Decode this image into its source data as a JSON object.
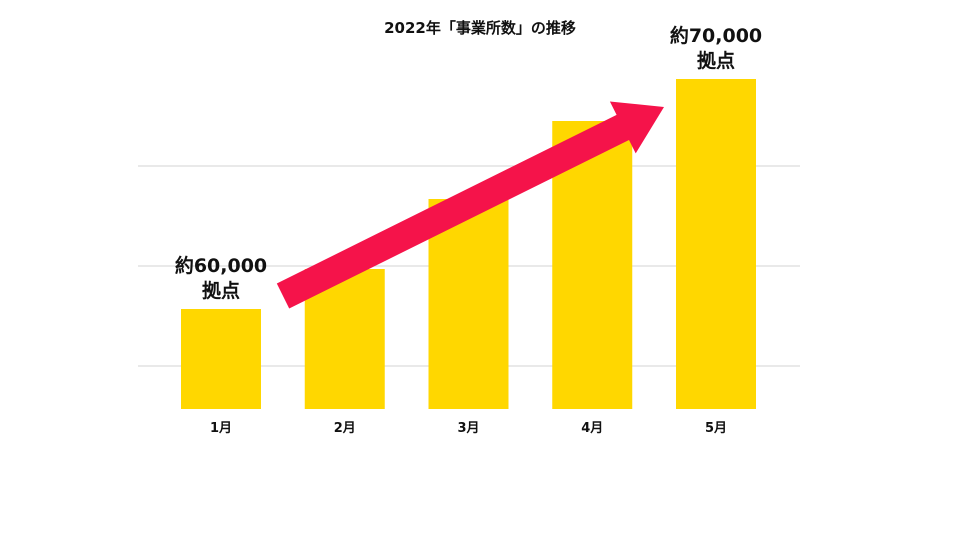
{
  "chart_data": {
    "type": "bar",
    "title": "2022年「事業所数」の推移",
    "categories": [
      "1月",
      "2月",
      "3月",
      "4月",
      "5月"
    ],
    "values": [
      60000,
      62000,
      65500,
      69400,
      71500
    ],
    "ylim": [
      55000,
      75000
    ],
    "grid": true,
    "gridlines_shown": 3,
    "xlabel": "",
    "ylabel": "",
    "annotations": [
      {
        "category": "1月",
        "line1": "約60,000",
        "line2": "拠点"
      },
      {
        "category": "5月",
        "line1": "約70,000",
        "line2": "拠点"
      }
    ],
    "trend_arrow": {
      "from": "1月",
      "to": "5月",
      "direction": "up"
    },
    "colors": {
      "bar": "#FFD700",
      "arrow": "#F5134A",
      "grid": "#DCDCDC",
      "text": "#111111"
    }
  }
}
